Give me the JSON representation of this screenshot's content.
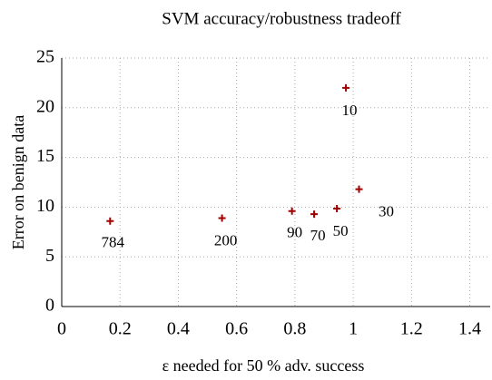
{
  "chart_data": {
    "type": "scatter",
    "title": "SVM accuracy/robustness tradeoff",
    "x_label": "ε needed for 50 % adv. success",
    "y_label": "Error on benign data",
    "series": [
      {
        "name": "SVM",
        "color": "#a00000",
        "x": [
          0.166,
          0.55,
          0.79,
          0.866,
          0.944,
          0.975,
          1.02
        ],
        "values": [
          8.6,
          8.9,
          9.6,
          9.3,
          9.85,
          22.0,
          11.8
        ],
        "point_labels": [
          "784",
          "200",
          "90",
          "70",
          "50",
          "10",
          "30"
        ]
      }
    ],
    "xlim": [
      0,
      1.47
    ],
    "ylim": [
      0,
      25
    ],
    "xticks": [
      0,
      0.2,
      0.4,
      0.6,
      0.8,
      1,
      1.2,
      1.4
    ],
    "yticks": [
      0,
      5,
      10,
      15,
      20,
      25
    ],
    "grid": true
  }
}
